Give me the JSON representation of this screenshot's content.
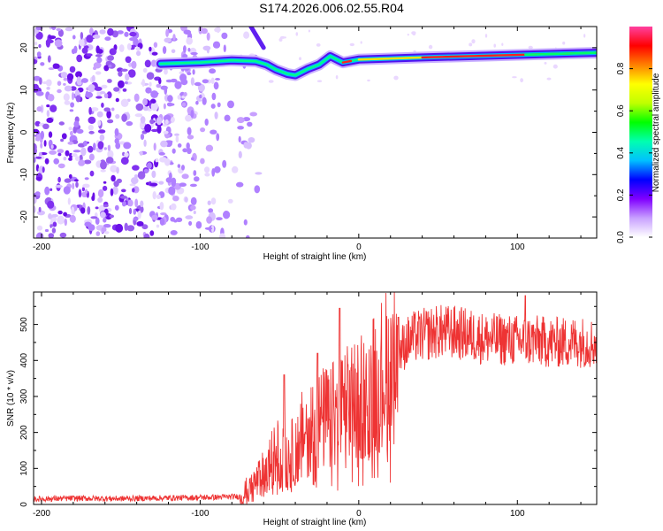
{
  "title": "S174.2026.006.02.55.R04",
  "chart_data": [
    {
      "type": "heatmap",
      "name": "spectrogram",
      "xlabel": "Height of straight line (km)",
      "ylabel": "Frequency (Hz)",
      "xlim": [
        -205,
        150
      ],
      "ylim": [
        -25,
        25
      ],
      "xticks": [
        -200,
        -100,
        0,
        100
      ],
      "yticks": [
        20,
        10,
        0,
        -10,
        -20
      ],
      "grid": false,
      "description_ridge": [
        {
          "x": -125,
          "y": 16.2
        },
        {
          "x": -100,
          "y": 16.5
        },
        {
          "x": -80,
          "y": 17.0
        },
        {
          "x": -65,
          "y": 16.8
        },
        {
          "x": -58,
          "y": 16.0
        },
        {
          "x": -52,
          "y": 14.8
        },
        {
          "x": -45,
          "y": 13.8
        },
        {
          "x": -40,
          "y": 13.5
        },
        {
          "x": -32,
          "y": 15.0
        },
        {
          "x": -25,
          "y": 16.0
        },
        {
          "x": -18,
          "y": 18.0
        },
        {
          "x": -10,
          "y": 16.5
        },
        {
          "x": 0,
          "y": 17.2
        },
        {
          "x": 40,
          "y": 17.7
        },
        {
          "x": 100,
          "y": 18.3
        },
        {
          "x": 150,
          "y": 18.8
        }
      ],
      "colorbar": {
        "label": "Normalized spectral amplitude",
        "range": [
          0,
          1
        ],
        "ticks": [
          "0.0",
          "0.2",
          "0.4",
          "0.6",
          "0.8"
        ],
        "colors": [
          "#ffffff",
          "#c8a0ff",
          "#8000ff",
          "#0000ff",
          "#00c0ff",
          "#00ffb0",
          "#00ff00",
          "#c0ff00",
          "#ffff00",
          "#ff8000",
          "#ff0000",
          "#ff40a0"
        ]
      }
    },
    {
      "type": "line",
      "name": "snr",
      "xlabel": "Height of straight line (km)",
      "ylabel": "SNR (10 * v/v)",
      "xlim": [
        -205,
        150
      ],
      "ylim": [
        0,
        590
      ],
      "xticks": [
        -200,
        -100,
        0,
        100
      ],
      "yticks": [
        0,
        100,
        200,
        300,
        400,
        500
      ],
      "grid": false,
      "color": "#ee3333",
      "points": [
        {
          "x": -205,
          "y": 15
        },
        {
          "x": -180,
          "y": 17
        },
        {
          "x": -150,
          "y": 16
        },
        {
          "x": -120,
          "y": 18
        },
        {
          "x": -90,
          "y": 20
        },
        {
          "x": -75,
          "y": 22
        },
        {
          "x": -68,
          "y": 45
        },
        {
          "x": -62,
          "y": 75
        },
        {
          "x": -58,
          "y": 95
        },
        {
          "x": -55,
          "y": 120
        },
        {
          "x": -50,
          "y": 150
        },
        {
          "x": -45,
          "y": 130
        },
        {
          "x": -40,
          "y": 150
        },
        {
          "x": -35,
          "y": 200
        },
        {
          "x": -30,
          "y": 220
        },
        {
          "x": -25,
          "y": 230
        },
        {
          "x": -20,
          "y": 240
        },
        {
          "x": -15,
          "y": 250
        },
        {
          "x": -10,
          "y": 260
        },
        {
          "x": -5,
          "y": 285
        },
        {
          "x": 0,
          "y": 300
        },
        {
          "x": 5,
          "y": 320
        },
        {
          "x": 10,
          "y": 340
        },
        {
          "x": 15,
          "y": 365
        },
        {
          "x": 20,
          "y": 395
        },
        {
          "x": 25,
          "y": 420
        },
        {
          "x": 30,
          "y": 450
        },
        {
          "x": 35,
          "y": 465
        },
        {
          "x": 40,
          "y": 470
        },
        {
          "x": 50,
          "y": 480
        },
        {
          "x": 60,
          "y": 478
        },
        {
          "x": 70,
          "y": 470
        },
        {
          "x": 80,
          "y": 460
        },
        {
          "x": 90,
          "y": 458
        },
        {
          "x": 100,
          "y": 455
        },
        {
          "x": 110,
          "y": 455
        },
        {
          "x": 120,
          "y": 450
        },
        {
          "x": 130,
          "y": 450
        },
        {
          "x": 140,
          "y": 452
        },
        {
          "x": 150,
          "y": 448
        }
      ],
      "spikes": [
        {
          "x": -47,
          "y": 360
        },
        {
          "x": -26,
          "y": 420
        },
        {
          "x": -12,
          "y": 545
        },
        {
          "x": 25,
          "y": 520
        },
        {
          "x": 105,
          "y": 580
        }
      ]
    }
  ]
}
